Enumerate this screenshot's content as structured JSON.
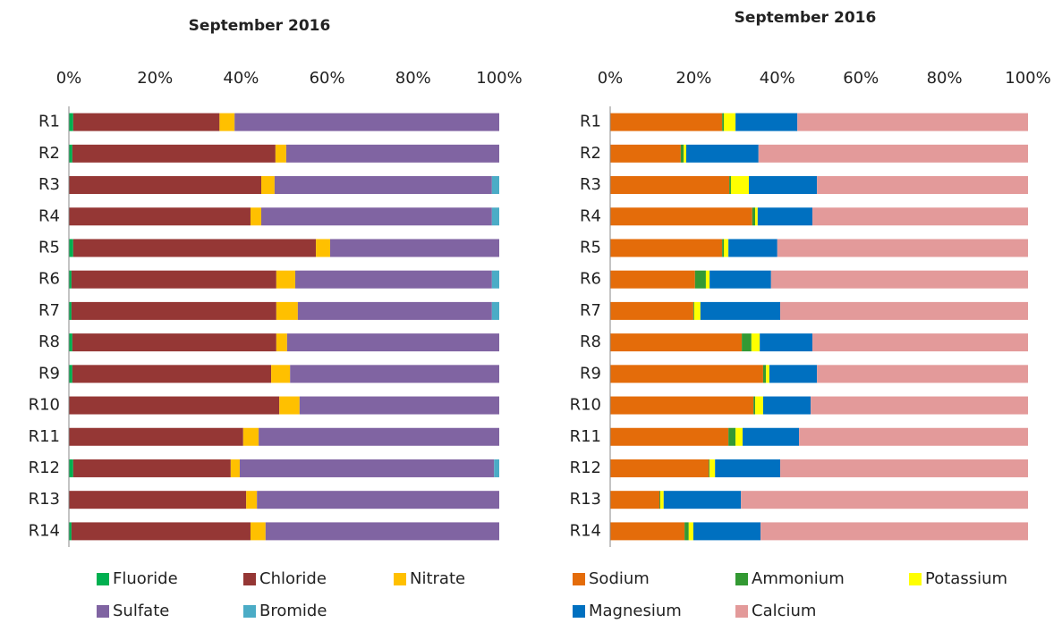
{
  "chart_data": [
    {
      "type": "stacked_bar_horizontal",
      "title": "September 2016",
      "categories": [
        "R1",
        "R2",
        "R3",
        "R4",
        "R5",
        "R6",
        "R7",
        "R8",
        "R9",
        "R10",
        "R11",
        "R12",
        "R13",
        "R14"
      ],
      "series": [
        {
          "name": "Fluoride",
          "color": "#00b050",
          "values": [
            1,
            0.8,
            0,
            0,
            1,
            0.6,
            0.6,
            0.8,
            0.8,
            0,
            0,
            1,
            0,
            0.6
          ]
        },
        {
          "name": "Chloride",
          "color": "#953735",
          "values": [
            34,
            47.2,
            44.7,
            42.2,
            56.4,
            47.6,
            47.6,
            47.4,
            46.2,
            48.9,
            40.5,
            36.6,
            41.2,
            41.6
          ]
        },
        {
          "name": "Nitrate",
          "color": "#ffc000",
          "values": [
            3.5,
            2.5,
            3.1,
            2.5,
            3.3,
            4.4,
            5,
            2.5,
            4.4,
            4.7,
            3.6,
            2.1,
            2.5,
            3.5
          ]
        },
        {
          "name": "Sulfate",
          "color": "#8064a2",
          "values": [
            61.5,
            49.5,
            50.5,
            53.6,
            39.3,
            45.7,
            45.1,
            49.3,
            48.6,
            46.4,
            55.9,
            59.1,
            56.3,
            54.3
          ]
        },
        {
          "name": "Bromide",
          "color": "#4bacc6",
          "values": [
            0,
            0,
            1.7,
            1.7,
            0,
            1.7,
            1.7,
            0,
            0,
            0,
            0,
            1.2,
            0,
            0
          ]
        }
      ],
      "xlim": [
        0,
        100
      ],
      "xticks": [
        {
          "value": 0,
          "label": "0%"
        },
        {
          "value": 20,
          "label": "20%"
        },
        {
          "value": 40,
          "label": "40%"
        },
        {
          "value": 60,
          "label": "60%"
        },
        {
          "value": 80,
          "label": "80%"
        },
        {
          "value": 100,
          "label": "100%"
        }
      ],
      "legend": "bottom"
    },
    {
      "type": "stacked_bar_horizontal",
      "title": "September 2016",
      "categories": [
        "R1",
        "R2",
        "R3",
        "R4",
        "R5",
        "R6",
        "R7",
        "R8",
        "R9",
        "R10",
        "R11",
        "R12",
        "R13",
        "R14"
      ],
      "series": [
        {
          "name": "Sodium",
          "color": "#e46c0a",
          "values": [
            26.8,
            16.9,
            28.5,
            34,
            26.8,
            20.3,
            19.9,
            31.5,
            36.6,
            34.3,
            28.3,
            23.6,
            11.8,
            17.8
          ]
        },
        {
          "name": "Ammonium",
          "color": "#339933",
          "values": [
            0.4,
            0.7,
            0.4,
            0.7,
            0.4,
            2.6,
            0.2,
            2.3,
            0.7,
            0.4,
            1.7,
            0.2,
            0.2,
            1
          ]
        },
        {
          "name": "Potassium",
          "color": "#ffff00",
          "values": [
            2.8,
            0.6,
            4.3,
            0.6,
            1.1,
            0.9,
            1.5,
            2,
            0.8,
            1.9,
            1.7,
            1.3,
            0.8,
            1.1
          ]
        },
        {
          "name": "Magnesium",
          "color": "#0070c0",
          "values": [
            14.8,
            17.3,
            16.3,
            13.1,
            11.7,
            14.7,
            19.1,
            12.6,
            11.4,
            11.4,
            13.5,
            15.6,
            18.5,
            16.1
          ]
        },
        {
          "name": "Calcium",
          "color": "#e39a9a",
          "values": [
            55.2,
            64.5,
            50.5,
            51.6,
            60,
            61.5,
            59.3,
            51.6,
            50.5,
            52,
            54.8,
            59.3,
            68.7,
            64
          ]
        }
      ],
      "xlim": [
        0,
        100
      ],
      "xticks": [
        {
          "value": 0,
          "label": "0%"
        },
        {
          "value": 20,
          "label": "20%"
        },
        {
          "value": 40,
          "label": "40%"
        },
        {
          "value": 60,
          "label": "60%"
        },
        {
          "value": 80,
          "label": "80%"
        },
        {
          "value": 100,
          "label": "100%"
        }
      ],
      "legend": "bottom"
    }
  ]
}
